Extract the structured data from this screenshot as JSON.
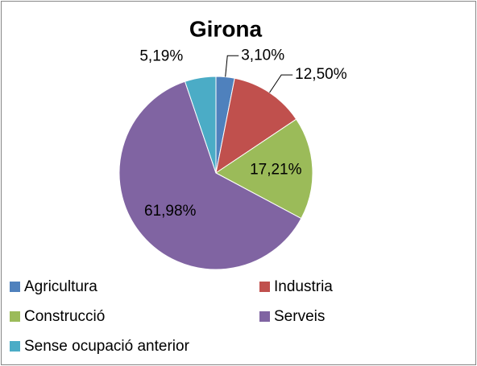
{
  "chart_data": {
    "type": "pie",
    "title": "Girona",
    "categories": [
      "Agricultura",
      "Industria",
      "Construcció",
      "Serveis",
      "Sense ocupació anterior"
    ],
    "values": [
      3.1,
      12.5,
      17.21,
      61.98,
      5.19
    ],
    "value_labels": [
      "3,10%",
      "12,50%",
      "17,21%",
      "61,98%",
      "5,19%"
    ],
    "colors": [
      "#4f81bd",
      "#c0504d",
      "#9bbb59",
      "#8064a2",
      "#4bacc6"
    ],
    "legend": "bottom"
  }
}
